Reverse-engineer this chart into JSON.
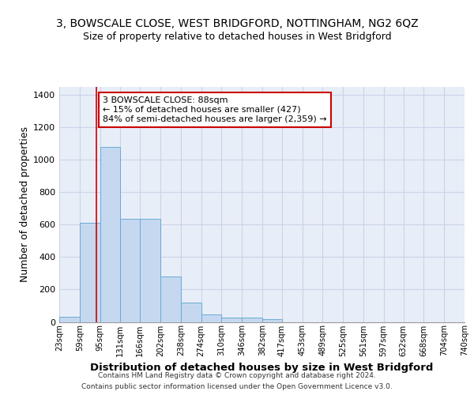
{
  "title": "3, BOWSCALE CLOSE, WEST BRIDGFORD, NOTTINGHAM, NG2 6QZ",
  "subtitle": "Size of property relative to detached houses in West Bridgford",
  "xlabel": "Distribution of detached houses by size in West Bridgford",
  "ylabel": "Number of detached properties",
  "footer1": "Contains HM Land Registry data © Crown copyright and database right 2024.",
  "footer2": "Contains public sector information licensed under the Open Government Licence v3.0.",
  "bin_labels": [
    "23sqm",
    "59sqm",
    "95sqm",
    "131sqm",
    "166sqm",
    "202sqm",
    "238sqm",
    "274sqm",
    "310sqm",
    "346sqm",
    "382sqm",
    "417sqm",
    "453sqm",
    "489sqm",
    "525sqm",
    "561sqm",
    "597sqm",
    "632sqm",
    "668sqm",
    "704sqm",
    "740sqm"
  ],
  "bar_values": [
    30,
    610,
    1080,
    635,
    635,
    280,
    120,
    45,
    25,
    25,
    15,
    0,
    0,
    0,
    0,
    0,
    0,
    0,
    0,
    0
  ],
  "bin_edges": [
    23,
    59,
    95,
    131,
    166,
    202,
    238,
    274,
    310,
    346,
    382,
    417,
    453,
    489,
    525,
    561,
    597,
    632,
    668,
    704,
    740
  ],
  "bar_color": "#c5d8f0",
  "bar_edge_color": "#6aaad4",
  "grid_color": "#c8d4e8",
  "background_color": "#e8eef8",
  "red_line_x": 88,
  "annotation_line1": "3 BOWSCALE CLOSE: 88sqm",
  "annotation_line2": "← 15% of detached houses are smaller (427)",
  "annotation_line3": "84% of semi-detached houses are larger (2,359) →",
  "annotation_box_color": "#ffffff",
  "annotation_box_edge_color": "#cc0000",
  "ylim": [
    0,
    1450
  ],
  "yticks": [
    0,
    200,
    400,
    600,
    800,
    1000,
    1200,
    1400
  ]
}
